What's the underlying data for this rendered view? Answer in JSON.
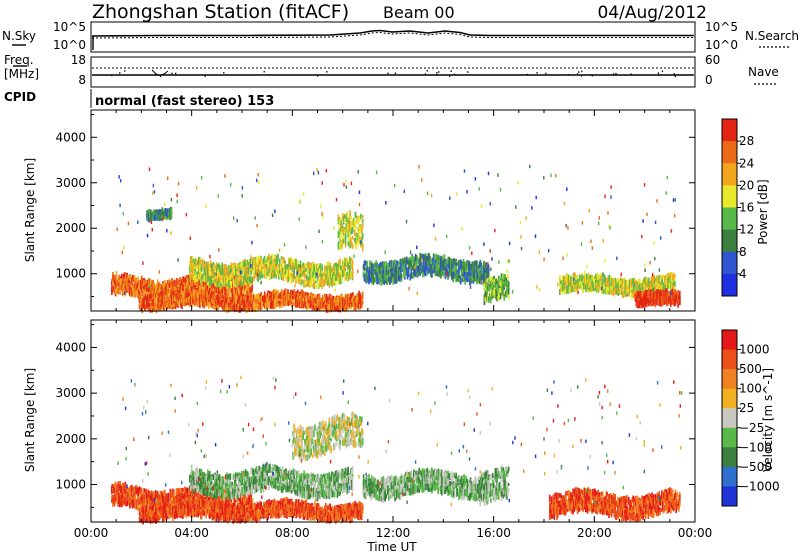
{
  "header": {
    "station": "Zhongshan Station (fitACF)",
    "beam": "Beam 00",
    "date": "04/Aug/2012"
  },
  "top_panel": {
    "left_label": "N.Sky",
    "left_ticks": [
      "10^5",
      "10^0"
    ],
    "right_ticks": [
      "10^5",
      "10^0"
    ],
    "right_label": "N.Search"
  },
  "freq_panel": {
    "left_label_1": "Freq.",
    "left_label_2": "[MHz]",
    "left_ticks": [
      "18",
      "8"
    ],
    "right_ticks": [
      "60",
      "0"
    ],
    "right_label": "Nave"
  },
  "cpid": {
    "label": "CPID",
    "mode": "normal (fast stereo) 153"
  },
  "chart_data": [
    {
      "type": "heatmap",
      "title": "",
      "xlabel": "Time UT",
      "ylabel": "Slant Range [km]",
      "x_ticks": [
        "00:00",
        "04:00",
        "08:00",
        "12:00",
        "16:00",
        "20:00",
        "00:00"
      ],
      "y_ticks": [
        1000,
        2000,
        3000,
        4000
      ],
      "ylim": [
        180,
        4600
      ],
      "colorbar": {
        "label": "Power [dB]",
        "ticks": [
          4,
          8,
          12,
          16,
          20,
          24,
          28
        ],
        "colors": [
          "#1f2fe0",
          "#2f55d0",
          "#3a7f3e",
          "#58b848",
          "#e8e82c",
          "#f2a61e",
          "#ec6a18",
          "#e42414"
        ]
      },
      "scatter_echo_bands": [
        {
          "name": "A",
          "t_start": 0.8,
          "t_end": 6.4,
          "r_center": 700,
          "r_width": 250,
          "level": 6
        },
        {
          "name": "B",
          "t_start": 1.9,
          "t_end": 10.8,
          "r_center": 400,
          "r_width": 180,
          "level": 6
        },
        {
          "name": "C",
          "t_start": 3.9,
          "t_end": 10.4,
          "r_center": 1050,
          "r_width": 280,
          "level": 4
        },
        {
          "name": "D",
          "t_start": 9.8,
          "t_end": 10.8,
          "r_center": 1800,
          "r_width": 450,
          "level": 4
        },
        {
          "name": "E",
          "t_start": 10.8,
          "t_end": 15.8,
          "r_center": 1100,
          "r_width": 260,
          "level": 2
        },
        {
          "name": "F",
          "t_start": 15.6,
          "t_end": 16.6,
          "r_center": 600,
          "r_width": 300,
          "level": 3
        },
        {
          "name": "G",
          "t_start": 18.6,
          "t_end": 23.2,
          "r_center": 750,
          "r_width": 200,
          "level": 4
        },
        {
          "name": "H",
          "t_start": 21.6,
          "t_end": 23.4,
          "r_center": 420,
          "r_width": 170,
          "level": 7
        },
        {
          "name": "I",
          "t_start": 2.2,
          "t_end": 3.2,
          "r_center": 2300,
          "r_width": 90,
          "level": 2
        }
      ]
    },
    {
      "type": "heatmap",
      "title": "",
      "xlabel": "Time UT",
      "ylabel": "Slant Range [km]",
      "x_ticks": [
        "00:00",
        "04:00",
        "08:00",
        "12:00",
        "16:00",
        "20:00",
        "00:00"
      ],
      "y_ticks": [
        1000,
        2000,
        3000,
        4000
      ],
      "ylim": [
        180,
        4600
      ],
      "colorbar": {
        "label": "Velocity [m s^-1]",
        "ticks": [
          "1000",
          "500",
          "100",
          "25",
          "-25",
          "-100",
          "-500",
          "-1000"
        ],
        "colors": [
          "#2035d8",
          "#2f6fd0",
          "#3a7f3e",
          "#58b848",
          "#c8c8c0",
          "#f0b020",
          "#f08020",
          "#ec5018",
          "#e41818"
        ]
      },
      "scatter_echo_bands": [
        {
          "name": "A",
          "t_start": 0.8,
          "t_end": 6.4,
          "r_center": 700,
          "r_width": 260,
          "level": 7
        },
        {
          "name": "B",
          "t_start": 1.9,
          "t_end": 10.8,
          "r_center": 420,
          "r_width": 200,
          "level": 7
        },
        {
          "name": "C",
          "t_start": 3.9,
          "t_end": 10.4,
          "r_center": 1050,
          "r_width": 300,
          "level": 3
        },
        {
          "name": "D",
          "t_start": 8.0,
          "t_end": 10.8,
          "r_center": 2050,
          "r_width": 420,
          "level": 4
        },
        {
          "name": "E",
          "t_start": 10.8,
          "t_end": 15.8,
          "r_center": 1000,
          "r_width": 280,
          "level": 3
        },
        {
          "name": "F",
          "t_start": 15.4,
          "t_end": 16.6,
          "r_center": 900,
          "r_width": 400,
          "level": 3
        },
        {
          "name": "G",
          "t_start": 18.2,
          "t_end": 23.4,
          "r_center": 560,
          "r_width": 280,
          "level": 7
        }
      ]
    }
  ]
}
